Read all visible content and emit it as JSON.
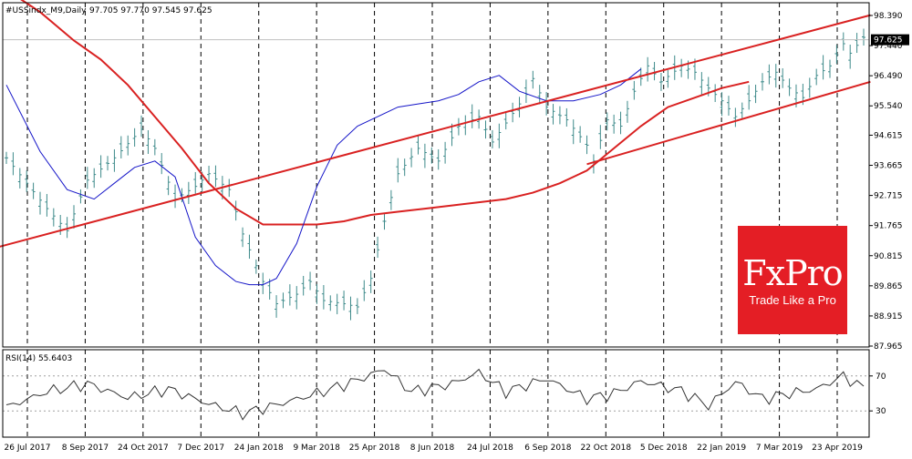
{
  "header": {
    "symbol": "#USSindx_M9,Daily",
    "ohlc": "97.705 97.770 97.545 97.625"
  },
  "rsi_label": "RSI(14) 55.6403",
  "badge": {
    "brand": "FxPro",
    "tagline": "Trade Like a Pro"
  },
  "colors": {
    "price_bars": "#3d8a8a",
    "ma_short": "#1515c8",
    "ma_long": "#d92121",
    "trendline": "#d92121",
    "rsi": "#333333",
    "badge": "#e41e25"
  },
  "chart_data": {
    "type": "ohlc",
    "price_axis": {
      "ticks": [
        "98.390",
        "97.440",
        "96.490",
        "95.540",
        "94.615",
        "93.665",
        "92.715",
        "91.765",
        "90.815",
        "89.865",
        "88.915",
        "87.965"
      ],
      "current": "97.625"
    },
    "rsi_axis": {
      "ticks": [
        "70",
        "30"
      ],
      "levels": [
        70,
        30
      ],
      "range": [
        0,
        100
      ]
    },
    "x_labels": [
      "26 Jul 2017",
      "8 Sep 2017",
      "24 Oct 2017",
      "7 Dec 2017",
      "24 Jan 2018",
      "9 Mar 2018",
      "25 Apr 2018",
      "8 Jun 2018",
      "24 Jul 2018",
      "6 Sep 2018",
      "22 Oct 2018",
      "5 Dec 2018",
      "22 Jan 2019",
      "7 Mar 2019",
      "23 Apr 2019"
    ],
    "price_anchors": [
      [
        0,
        93.9
      ],
      [
        6,
        92.3
      ],
      [
        9,
        91.6
      ],
      [
        12,
        93.2
      ],
      [
        16,
        93.9
      ],
      [
        20,
        94.8
      ],
      [
        22,
        94.2
      ],
      [
        25,
        92.6
      ],
      [
        28,
        93.0
      ],
      [
        30,
        93.4
      ],
      [
        33,
        92.9
      ],
      [
        35,
        91.5
      ],
      [
        38,
        90.0
      ],
      [
        40,
        89.3
      ],
      [
        43,
        89.6
      ],
      [
        45,
        90.0
      ],
      [
        47,
        89.4
      ],
      [
        50,
        89.3
      ],
      [
        52,
        89.2
      ],
      [
        54,
        90.1
      ],
      [
        56,
        91.9
      ],
      [
        58,
        93.4
      ],
      [
        61,
        94.2
      ],
      [
        64,
        93.8
      ],
      [
        67,
        94.9
      ],
      [
        70,
        95.2
      ],
      [
        72,
        94.4
      ],
      [
        75,
        95.3
      ],
      [
        77,
        95.9
      ],
      [
        78,
        96.4
      ],
      [
        80,
        95.5
      ],
      [
        83,
        95.1
      ],
      [
        86,
        94.3
      ],
      [
        87,
        93.8
      ],
      [
        89,
        95.1
      ],
      [
        91,
        94.9
      ],
      [
        93,
        96.0
      ],
      [
        95,
        96.8
      ],
      [
        97,
        96.3
      ],
      [
        100,
        96.8
      ],
      [
        102,
        96.6
      ],
      [
        104,
        96.1
      ],
      [
        106,
        95.7
      ],
      [
        108,
        95.2
      ],
      [
        110,
        95.7
      ],
      [
        112,
        96.3
      ],
      [
        114,
        96.6
      ],
      [
        116,
        96.1
      ],
      [
        118,
        95.8
      ],
      [
        120,
        96.5
      ],
      [
        122,
        96.8
      ],
      [
        124,
        97.5
      ],
      [
        125,
        97.2
      ],
      [
        127,
        97.7
      ]
    ],
    "ma_short": [
      [
        0,
        96.2
      ],
      [
        5,
        94.1
      ],
      [
        9,
        92.9
      ],
      [
        13,
        92.6
      ],
      [
        16,
        93.1
      ],
      [
        19,
        93.6
      ],
      [
        22,
        93.8
      ],
      [
        25,
        93.3
      ],
      [
        28,
        91.4
      ],
      [
        31,
        90.5
      ],
      [
        34,
        90.0
      ],
      [
        36,
        89.9
      ],
      [
        38,
        89.9
      ],
      [
        40,
        90.1
      ],
      [
        43,
        91.2
      ],
      [
        46,
        93.0
      ],
      [
        49,
        94.3
      ],
      [
        52,
        94.9
      ],
      [
        55,
        95.2
      ],
      [
        58,
        95.5
      ],
      [
        61,
        95.6
      ],
      [
        64,
        95.7
      ],
      [
        67,
        95.9
      ],
      [
        70,
        96.3
      ],
      [
        73,
        96.5
      ],
      [
        76,
        96.0
      ],
      [
        80,
        95.7
      ],
      [
        84,
        95.7
      ],
      [
        88,
        95.9
      ],
      [
        91,
        96.2
      ],
      [
        94,
        96.7
      ]
    ],
    "ma_long": [
      [
        0,
        99.2
      ],
      [
        5,
        98.5
      ],
      [
        10,
        97.6
      ],
      [
        14,
        97.0
      ],
      [
        18,
        96.2
      ],
      [
        22,
        95.2
      ],
      [
        26,
        94.2
      ],
      [
        30,
        93.1
      ],
      [
        34,
        92.3
      ],
      [
        38,
        91.8
      ],
      [
        42,
        91.8
      ],
      [
        46,
        91.8
      ],
      [
        50,
        91.9
      ],
      [
        54,
        92.1
      ],
      [
        58,
        92.2
      ],
      [
        62,
        92.3
      ],
      [
        66,
        92.4
      ],
      [
        70,
        92.5
      ],
      [
        74,
        92.6
      ],
      [
        78,
        92.8
      ],
      [
        82,
        93.1
      ],
      [
        86,
        93.5
      ],
      [
        90,
        94.2
      ],
      [
        94,
        94.9
      ],
      [
        98,
        95.5
      ],
      [
        102,
        95.8
      ],
      [
        106,
        96.1
      ],
      [
        110,
        96.3
      ]
    ],
    "trendlines": [
      {
        "from": [
          -1,
          91.1
        ],
        "to": [
          128,
          98.4
        ]
      },
      {
        "from": [
          86,
          93.7
        ],
        "to": [
          128,
          96.3
        ]
      }
    ],
    "rsi_anchors": [
      [
        0,
        34
      ],
      [
        6,
        52
      ],
      [
        12,
        61
      ],
      [
        18,
        45
      ],
      [
        24,
        55
      ],
      [
        30,
        38
      ],
      [
        35,
        27
      ],
      [
        40,
        37
      ],
      [
        46,
        50
      ],
      [
        52,
        65
      ],
      [
        56,
        78
      ],
      [
        60,
        52
      ],
      [
        66,
        61
      ],
      [
        70,
        74
      ],
      [
        74,
        52
      ],
      [
        80,
        67
      ],
      [
        86,
        44
      ],
      [
        90,
        50
      ],
      [
        94,
        64
      ],
      [
        100,
        53
      ],
      [
        104,
        36
      ],
      [
        108,
        63
      ],
      [
        112,
        44
      ],
      [
        116,
        50
      ],
      [
        120,
        55
      ],
      [
        124,
        70
      ],
      [
        127,
        56
      ]
    ]
  }
}
